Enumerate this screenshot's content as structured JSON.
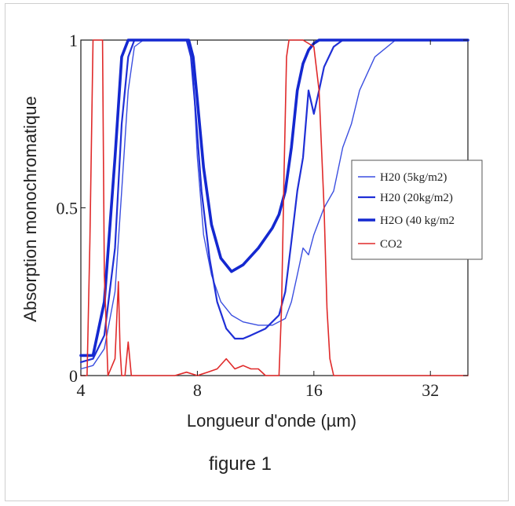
{
  "chart_data": {
    "type": "line",
    "xlabel": "Longueur d'onde (µm)",
    "ylabel": "Absorption monochromatique",
    "caption": "figure 1",
    "x_scale": "log",
    "xlim": [
      4,
      40
    ],
    "ylim": [
      0,
      1
    ],
    "x_ticks": [
      {
        "value": 4,
        "label": "4"
      },
      {
        "value": 8,
        "label": "8"
      },
      {
        "value": 16,
        "label": "16"
      },
      {
        "value": 32,
        "label": "32"
      }
    ],
    "y_ticks": [
      {
        "value": 0,
        "label": "0"
      },
      {
        "value": 0.5,
        "label": "0.5"
      },
      {
        "value": 1,
        "label": "1"
      }
    ],
    "legend_position": "right",
    "series": [
      {
        "name": "H20 (5kg/m2)",
        "color": "#3b4fe0",
        "width": 1.4,
        "x": [
          4,
          4.3,
          4.6,
          4.9,
          5.1,
          5.3,
          5.5,
          5.8,
          6.2,
          7.0,
          7.6,
          7.8,
          8.0,
          8.3,
          8.7,
          9.2,
          9.8,
          10.5,
          11.5,
          12.5,
          13.5,
          14.0,
          14.5,
          15.0,
          15.5,
          16.0,
          17.0,
          18.0,
          19.0,
          20.0,
          21.0,
          23.0,
          26.0,
          30.0,
          36.0,
          40.0
        ],
        "y": [
          0.02,
          0.03,
          0.08,
          0.25,
          0.55,
          0.85,
          0.98,
          1.0,
          1.0,
          1.0,
          1.0,
          0.9,
          0.65,
          0.42,
          0.3,
          0.22,
          0.18,
          0.16,
          0.15,
          0.15,
          0.17,
          0.22,
          0.3,
          0.38,
          0.36,
          0.42,
          0.5,
          0.55,
          0.68,
          0.75,
          0.85,
          0.95,
          1.0,
          1.0,
          1.0,
          1.0
        ]
      },
      {
        "name": "H20 (20kg/m2)",
        "color": "#1f2fd6",
        "width": 2.2,
        "x": [
          4,
          4.3,
          4.6,
          4.9,
          5.1,
          5.3,
          5.5,
          5.8,
          6.2,
          7.0,
          7.5,
          7.7,
          7.9,
          8.2,
          8.6,
          9.0,
          9.5,
          10.0,
          10.5,
          11.0,
          12.0,
          13.0,
          13.5,
          14.0,
          14.5,
          15.0,
          15.5,
          16.0,
          16.5,
          17.0,
          18.0,
          19.0,
          20.0,
          24.0,
          30.0,
          40.0
        ],
        "y": [
          0.04,
          0.05,
          0.12,
          0.38,
          0.75,
          0.95,
          1.0,
          1.0,
          1.0,
          1.0,
          1.0,
          0.95,
          0.8,
          0.55,
          0.35,
          0.22,
          0.14,
          0.11,
          0.11,
          0.12,
          0.14,
          0.18,
          0.25,
          0.4,
          0.55,
          0.65,
          0.85,
          0.78,
          0.85,
          0.92,
          0.98,
          1.0,
          1.0,
          1.0,
          1.0,
          1.0
        ]
      },
      {
        "name": "H2O (40 kg/m2",
        "color": "#1428d0",
        "width": 3.6,
        "x": [
          4,
          4.3,
          4.6,
          4.9,
          5.1,
          5.3,
          5.5,
          6.2,
          7.0,
          7.6,
          7.8,
          8.0,
          8.3,
          8.7,
          9.2,
          9.8,
          10.5,
          11.5,
          12.5,
          13.0,
          13.5,
          14.0,
          14.5,
          15.0,
          15.5,
          16.0,
          16.5,
          17.0,
          18.0,
          20.0,
          24.0,
          30.0,
          40.0
        ],
        "y": [
          0.06,
          0.06,
          0.22,
          0.65,
          0.95,
          1.0,
          1.0,
          1.0,
          1.0,
          1.0,
          0.95,
          0.82,
          0.62,
          0.45,
          0.35,
          0.31,
          0.33,
          0.38,
          0.44,
          0.48,
          0.55,
          0.68,
          0.85,
          0.93,
          0.97,
          0.99,
          1.0,
          1.0,
          1.0,
          1.0,
          1.0,
          1.0,
          1.0
        ]
      },
      {
        "name": "CO2",
        "color": "#e02a2a",
        "width": 1.6,
        "x": [
          4.0,
          4.15,
          4.22,
          4.3,
          4.45,
          4.55,
          4.6,
          4.7,
          4.9,
          5.0,
          5.05,
          5.1,
          5.2,
          5.3,
          5.4,
          5.5,
          5.6,
          6.0,
          7.0,
          7.5,
          8.0,
          8.5,
          9.0,
          9.5,
          10.0,
          10.5,
          11.0,
          11.5,
          12.0,
          12.5,
          13.0,
          13.2,
          13.4,
          13.6,
          13.8,
          14.0,
          14.2,
          15.0,
          16.0,
          16.5,
          17.0,
          17.3,
          17.6,
          18.0,
          19.0,
          25.0,
          40.0
        ],
        "y": [
          0.0,
          0.0,
          0.4,
          1.0,
          1.0,
          1.0,
          0.3,
          0.0,
          0.05,
          0.28,
          0.08,
          0.0,
          0.0,
          0.1,
          0.0,
          0.0,
          0.0,
          0.0,
          0.0,
          0.01,
          0.0,
          0.01,
          0.02,
          0.05,
          0.02,
          0.03,
          0.02,
          0.02,
          0.0,
          0.0,
          0.0,
          0.2,
          0.6,
          0.95,
          1.0,
          1.0,
          1.0,
          1.0,
          0.98,
          0.85,
          0.5,
          0.2,
          0.05,
          0.0,
          0.0,
          0.0,
          0.0
        ]
      }
    ]
  }
}
